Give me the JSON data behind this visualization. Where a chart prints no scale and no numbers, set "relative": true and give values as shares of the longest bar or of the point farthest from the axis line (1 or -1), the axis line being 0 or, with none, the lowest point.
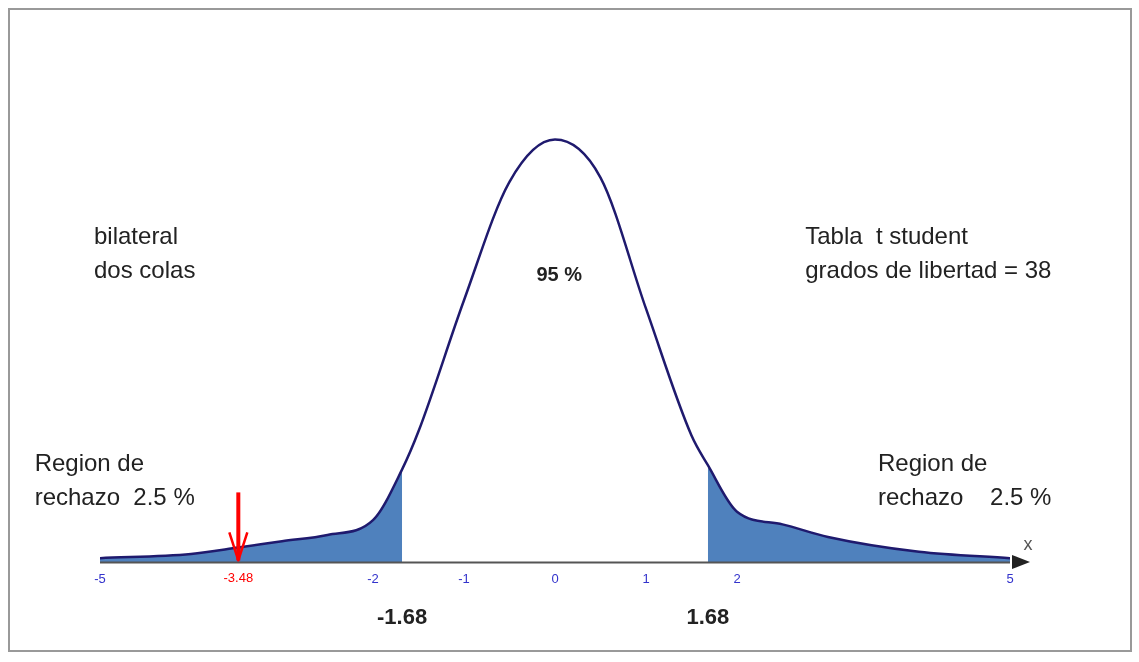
{
  "chart_data": {
    "type": "line",
    "relative": true,
    "xlabel": "x",
    "xlim": [
      -5,
      5
    ],
    "xticks": [
      -5,
      -2,
      -1,
      0,
      1,
      2,
      5
    ],
    "series": [
      {
        "type": "area",
        "color": "#4f81bd",
        "x": [
          -5,
          -4,
          -3.48,
          -3,
          -2.5,
          -2,
          -1.68
        ],
        "values": [
          0.01,
          0.02,
          0.035,
          0.05,
          0.065,
          0.1,
          0.22
        ]
      },
      {
        "type": "area",
        "color": "#4f81bd",
        "x": [
          1.68,
          2,
          2.5,
          3,
          4,
          5
        ],
        "values": [
          0.23,
          0.12,
          0.09,
          0.06,
          0.025,
          0.01
        ]
      },
      {
        "type": "line",
        "color": "#1f1a6e",
        "x": [
          -5,
          -4,
          -3.48,
          -3,
          -2.5,
          -2,
          -1.68,
          -1.5,
          -1,
          -0.5,
          0,
          0.5,
          1,
          1.5,
          1.68,
          2,
          2.5,
          3,
          4,
          5
        ],
        "values": [
          0.01,
          0.02,
          0.035,
          0.05,
          0.065,
          0.1,
          0.22,
          0.31,
          0.62,
          0.9,
          1,
          0.91,
          0.6,
          0.3,
          0.23,
          0.12,
          0.09,
          0.06,
          0.025,
          0.01
        ]
      }
    ],
    "ref_lines": [
      {
        "axis": "x",
        "value": -3.48,
        "label": "-3.48",
        "color": "#ff0000"
      }
    ],
    "annotations": [
      "bilateral\ndos colas",
      "95 %",
      "Tabla  t student\ngrados de libertad = 38",
      "Region de\nrechazo  2.5 %",
      "Region de\nrechazo    2.5 %",
      {
        "text": "-1.68",
        "x": -1.68,
        "y": 0
      },
      {
        "text": "1.68",
        "x": 1.68,
        "y": 0
      }
    ],
    "marker": "none",
    "grid": false,
    "legend": false
  }
}
